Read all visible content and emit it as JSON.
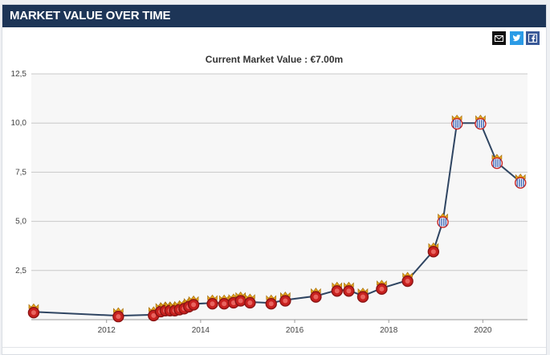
{
  "header": {
    "title": "MARKET VALUE OVER TIME"
  },
  "share": {
    "mail_icon": "mail-icon",
    "twitter_icon": "twitter-icon",
    "facebook_icon": "facebook-icon"
  },
  "colors": {
    "header_bg": "#1d3557",
    "line": "#2f4562",
    "plot_bg": "#f7f7f7",
    "grid": "#c8c8c8",
    "marker_red": "#c8211f",
    "marker_gold": "#e6a51c",
    "marker_blue": "#3a64b4"
  },
  "chart_data": {
    "type": "line",
    "title": "Current Market Value : €7.00m",
    "xlabel": "",
    "ylabel": "",
    "xlim": [
      2010.4,
      2020.95
    ],
    "ylim": [
      0,
      12.5
    ],
    "x_ticks": [
      "2012",
      "2014",
      "2016",
      "2018",
      "2020"
    ],
    "y_ticks": [
      "2,5",
      "5,0",
      "7,5",
      "10,0",
      "12,5"
    ],
    "grid": true,
    "legend": "none",
    "series": [
      {
        "x": [
          2010.45,
          2012.25,
          2013.0,
          2013.15,
          2013.25,
          2013.35,
          2013.45,
          2013.55,
          2013.65,
          2013.75,
          2013.85,
          2014.25,
          2014.5,
          2014.7,
          2014.85,
          2015.05,
          2015.5,
          2015.8,
          2016.45,
          2016.9,
          2017.15,
          2017.45,
          2017.85,
          2018.4,
          2018.95,
          2019.15,
          2019.45,
          2019.95,
          2020.3,
          2020.8
        ],
        "y": [
          0.4,
          0.2,
          0.25,
          0.45,
          0.5,
          0.5,
          0.5,
          0.55,
          0.6,
          0.7,
          0.8,
          0.85,
          0.85,
          0.9,
          1.0,
          0.9,
          0.85,
          1.0,
          1.2,
          1.5,
          1.5,
          1.2,
          1.6,
          2.0,
          3.5,
          5.0,
          10.0,
          10.0,
          8.0,
          7.0
        ]
      }
    ]
  }
}
